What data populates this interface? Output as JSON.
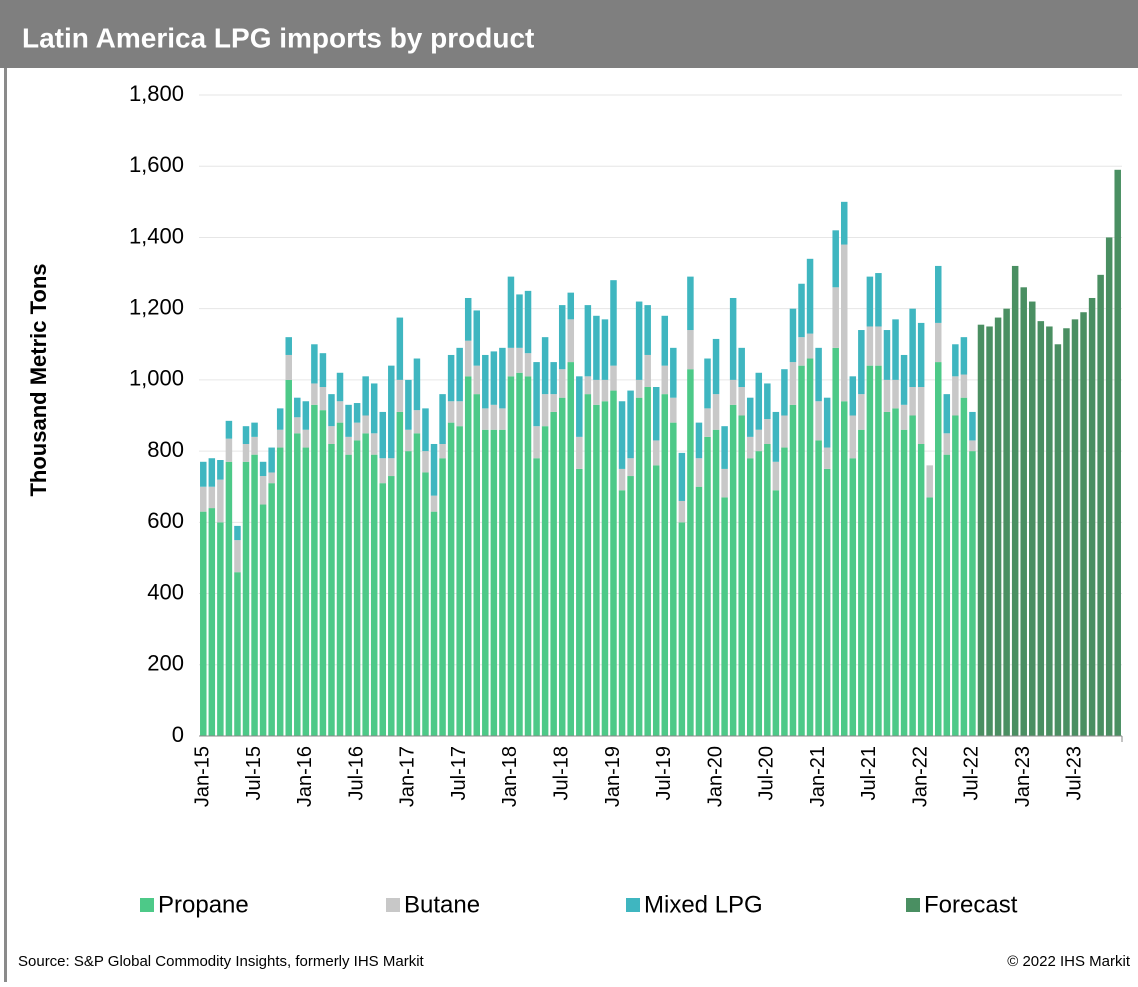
{
  "chart_data": {
    "type": "stacked_bar",
    "title": "Latin America LPG imports by product",
    "ylabel": "Thousand Metric Tons",
    "source": "Source: S&P Global Commodity Insights, formerly IHS Markit",
    "copyright": "© 2022 IHS Markit",
    "categories": [
      "Jan-15",
      null,
      null,
      null,
      null,
      null,
      "Jul-15",
      null,
      null,
      null,
      null,
      null,
      "Jan-16",
      null,
      null,
      null,
      null,
      null,
      "Jul-16",
      null,
      null,
      null,
      null,
      null,
      "Jan-17",
      null,
      null,
      null,
      null,
      null,
      "Jul-17",
      null,
      null,
      null,
      null,
      null,
      "Jan-18",
      null,
      null,
      null,
      null,
      null,
      "Jul-18",
      null,
      null,
      null,
      null,
      null,
      "Jan-19",
      null,
      null,
      null,
      null,
      null,
      "Jul-19",
      null,
      null,
      null,
      null,
      null,
      "Jan-20",
      null,
      null,
      null,
      null,
      null,
      "Jul-20",
      null,
      null,
      null,
      null,
      null,
      "Jan-21",
      null,
      null,
      null,
      null,
      null,
      "Jul-21",
      null,
      null,
      null,
      null,
      null,
      "Jan-22",
      null,
      null,
      null,
      null,
      null,
      "Jul-22",
      null,
      null,
      null,
      null,
      null,
      "Jan-23",
      null,
      null,
      null,
      null,
      null,
      "Jul-23",
      null,
      null,
      null,
      null,
      null
    ],
    "series": [
      {
        "name": "Propane",
        "color": "#4dc988",
        "values": [
          630,
          640,
          600,
          770,
          460,
          770,
          790,
          650,
          710,
          810,
          1000,
          850,
          810,
          930,
          915,
          820,
          880,
          790,
          830,
          850,
          790,
          710,
          730,
          910,
          800,
          850,
          740,
          630,
          780,
          880,
          870,
          1010,
          960,
          860,
          860,
          860,
          1010,
          1020,
          1010,
          780,
          870,
          910,
          950,
          1050,
          750,
          960,
          930,
          940,
          970,
          690,
          730,
          950,
          980,
          760,
          960,
          880,
          600,
          1030,
          700,
          840,
          860,
          670,
          930,
          900,
          780,
          800,
          820,
          690,
          810,
          930,
          1040,
          1060,
          830,
          750,
          1090,
          940,
          780,
          860,
          1040,
          1040,
          910,
          920,
          860,
          900,
          820,
          670,
          1050,
          790,
          900,
          950,
          800,
          null,
          null,
          null,
          null,
          null,
          null,
          null,
          null,
          null,
          null,
          null,
          null,
          null,
          null,
          null,
          null,
          null
        ]
      },
      {
        "name": "Butane",
        "color": "#c8c8c8",
        "values": [
          70,
          60,
          120,
          65,
          90,
          50,
          50,
          80,
          30,
          50,
          70,
          45,
          50,
          60,
          65,
          50,
          60,
          50,
          50,
          50,
          60,
          70,
          50,
          90,
          60,
          65,
          60,
          45,
          40,
          60,
          70,
          100,
          80,
          60,
          70,
          60,
          80,
          70,
          65,
          90,
          90,
          50,
          80,
          120,
          90,
          50,
          70,
          60,
          70,
          60,
          50,
          50,
          90,
          70,
          80,
          70,
          60,
          110,
          80,
          80,
          100,
          80,
          70,
          80,
          60,
          60,
          70,
          80,
          90,
          120,
          80,
          70,
          110,
          60,
          170,
          440,
          120,
          100,
          110,
          110,
          90,
          80,
          70,
          80,
          160,
          90,
          110,
          60,
          110,
          65,
          30,
          null,
          null,
          null,
          null,
          null,
          null,
          null,
          null,
          null,
          null,
          null,
          null,
          null,
          null,
          null,
          null,
          null
        ]
      },
      {
        "name": "Mixed LPG",
        "color": "#3fb6c0",
        "values": [
          70,
          80,
          55,
          50,
          40,
          50,
          40,
          40,
          70,
          60,
          50,
          55,
          80,
          110,
          95,
          90,
          80,
          90,
          55,
          110,
          140,
          130,
          260,
          175,
          140,
          145,
          120,
          145,
          140,
          130,
          150,
          120,
          155,
          150,
          150,
          170,
          200,
          150,
          175,
          180,
          160,
          90,
          180,
          75,
          170,
          200,
          180,
          170,
          240,
          190,
          190,
          220,
          140,
          150,
          140,
          140,
          135,
          150,
          100,
          140,
          155,
          120,
          230,
          110,
          110,
          160,
          100,
          140,
          130,
          150,
          150,
          210,
          150,
          140,
          160,
          120,
          110,
          180,
          140,
          150,
          140,
          170,
          140,
          220,
          180,
          0,
          160,
          110,
          90,
          105,
          80,
          null,
          null,
          null,
          null,
          null,
          null,
          null,
          null,
          null,
          null,
          null,
          null,
          null,
          null,
          null,
          null,
          null
        ]
      },
      {
        "name": "Forecast",
        "color": "#4a8f62",
        "values": [
          null,
          null,
          null,
          null,
          null,
          null,
          null,
          null,
          null,
          null,
          null,
          null,
          null,
          null,
          null,
          null,
          null,
          null,
          null,
          null,
          null,
          null,
          null,
          null,
          null,
          null,
          null,
          null,
          null,
          null,
          null,
          null,
          null,
          null,
          null,
          null,
          null,
          null,
          null,
          null,
          null,
          null,
          null,
          null,
          null,
          null,
          null,
          null,
          null,
          null,
          null,
          null,
          null,
          null,
          null,
          null,
          null,
          null,
          null,
          null,
          null,
          null,
          null,
          null,
          null,
          null,
          null,
          null,
          null,
          null,
          null,
          null,
          null,
          null,
          null,
          null,
          null,
          null,
          null,
          null,
          null,
          null,
          null,
          null,
          null,
          null,
          null,
          null,
          null,
          null,
          null,
          1155,
          1150,
          1175,
          1200,
          1320,
          1260,
          1220,
          1165,
          1150,
          1100,
          1145,
          1170,
          1190,
          1230,
          1295,
          1400,
          1590
        ]
      }
    ],
    "ylim": [
      0,
      1800
    ],
    "yticks": [
      0,
      200,
      400,
      600,
      800,
      {
        "value": 1000,
        "label": "1,000"
      },
      {
        "value": 1200,
        "label": "1,200"
      },
      {
        "value": 1400,
        "label": "1,400"
      },
      {
        "value": 1600,
        "label": "1,600"
      },
      {
        "value": 1800,
        "label": "1,800"
      }
    ],
    "grid": true,
    "legend": "bottom"
  }
}
